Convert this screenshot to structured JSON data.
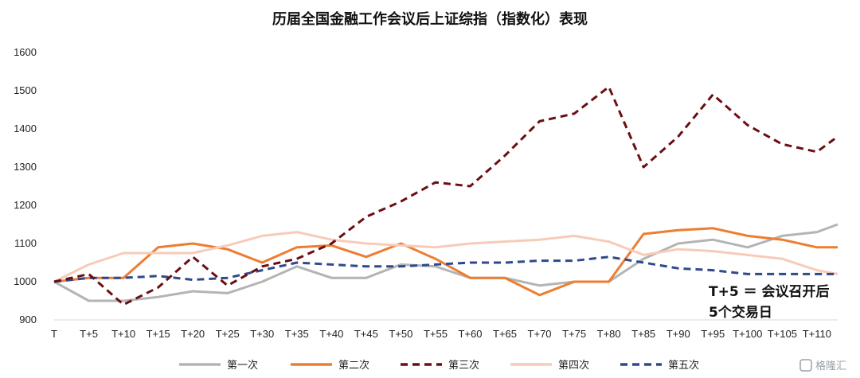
{
  "chart_data": {
    "type": "line",
    "title": "历届全国金融工作会议后上证综指（指数化）表现",
    "xlabel": "",
    "ylabel": "",
    "ylim": [
      900,
      1600
    ],
    "yticks": [
      900,
      1000,
      1100,
      1200,
      1300,
      1400,
      1500,
      1600
    ],
    "x_tick_labels": [
      "T",
      "T+5",
      "T+10",
      "T+15",
      "T+20",
      "T+25",
      "T+30",
      "T+35",
      "T+40",
      "T+45",
      "T+50",
      "T+55",
      "T+60",
      "T+65",
      "T+70",
      "T+75",
      "T+80",
      "T+85",
      "T+90",
      "T+95",
      "T+100",
      "T+105",
      "T+110"
    ],
    "grid": false,
    "legend_position": "bottom",
    "annotation_lines": [
      "T+5 ＝ 会议召开后",
      "5个交易日"
    ],
    "x": [
      0,
      5,
      10,
      15,
      20,
      25,
      30,
      35,
      40,
      45,
      50,
      55,
      60,
      65,
      70,
      75,
      80,
      85,
      90,
      95,
      100,
      105,
      110,
      113
    ],
    "series": [
      {
        "name": "第一次",
        "color": "#b4b4b4",
        "dash": "solid",
        "values": [
          1000,
          950,
          950,
          960,
          975,
          970,
          1000,
          1040,
          1010,
          1010,
          1045,
          1040,
          1010,
          1010,
          990,
          1000,
          1000,
          1060,
          1100,
          1110,
          1090,
          1120,
          1130,
          1150
        ]
      },
      {
        "name": "第二次",
        "color": "#ed7d31",
        "dash": "solid",
        "values": [
          1000,
          1010,
          1010,
          1090,
          1100,
          1085,
          1050,
          1090,
          1095,
          1065,
          1100,
          1060,
          1010,
          1010,
          965,
          1000,
          1000,
          1125,
          1135,
          1140,
          1120,
          1110,
          1090,
          1090
        ]
      },
      {
        "name": "第三次",
        "color": "#6b0e12",
        "dash": "dashed",
        "values": [
          1000,
          1020,
          940,
          985,
          1065,
          990,
          1040,
          1060,
          1100,
          1170,
          1210,
          1260,
          1250,
          1330,
          1420,
          1440,
          1510,
          1300,
          1380,
          1490,
          1410,
          1360,
          1340,
          1380
        ]
      },
      {
        "name": "第四次",
        "color": "#f8cbb8",
        "dash": "solid",
        "values": [
          1000,
          1045,
          1075,
          1075,
          1075,
          1095,
          1120,
          1130,
          1110,
          1100,
          1095,
          1090,
          1100,
          1105,
          1110,
          1120,
          1105,
          1070,
          1085,
          1080,
          1070,
          1060,
          1030,
          1020
        ]
      },
      {
        "name": "第五次",
        "color": "#2f4a8a",
        "dash": "dashed",
        "values": [
          1000,
          1010,
          1010,
          1015,
          1005,
          1010,
          1030,
          1050,
          1045,
          1040,
          1040,
          1045,
          1050,
          1050,
          1055,
          1055,
          1065,
          1050,
          1035,
          1030,
          1020,
          1020,
          1020,
          1020
        ]
      }
    ]
  },
  "watermark": "格隆汇"
}
